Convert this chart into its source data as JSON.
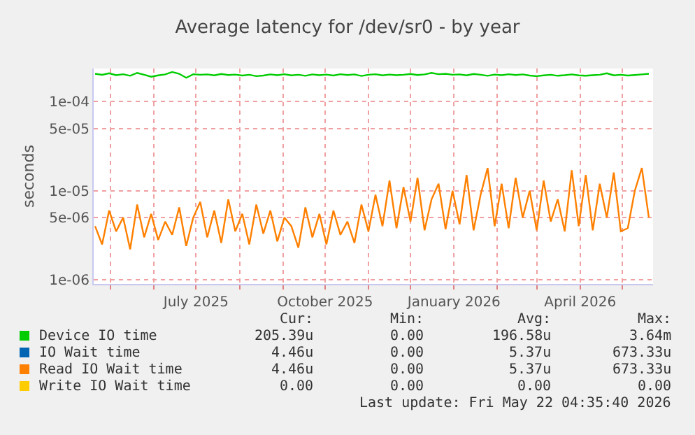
{
  "chart_data": {
    "type": "line",
    "title": "Average latency for /dev/sr0 - by year",
    "ylabel": "seconds",
    "log": "y",
    "grid": true,
    "legend": "bottom",
    "marker": "none",
    "line_style": "solid",
    "xlim": [
      "2025-04-19",
      "2026-05-23"
    ],
    "xticks": [
      {
        "value": "2025-05-01",
        "label": null
      },
      {
        "value": "2025-06-01",
        "label": null
      },
      {
        "value": "2025-07-01",
        "label": "July 2025"
      },
      {
        "value": "2025-08-01",
        "label": null
      },
      {
        "value": "2025-09-01",
        "label": null
      },
      {
        "value": "2025-10-01",
        "label": "October 2025"
      },
      {
        "value": "2025-11-01",
        "label": null
      },
      {
        "value": "2025-12-01",
        "label": null
      },
      {
        "value": "2026-01-01",
        "label": "January 2026"
      },
      {
        "value": "2026-02-01",
        "label": null
      },
      {
        "value": "2026-03-01",
        "label": null
      },
      {
        "value": "2026-04-01",
        "label": "April 2026"
      },
      {
        "value": "2026-05-01",
        "label": null
      }
    ],
    "ylim": [
      9e-07,
      0.000235
    ],
    "yticks": [
      {
        "value": 1e-06,
        "label": "1e-06"
      },
      {
        "value": 5e-06,
        "label": "5e-06"
      },
      {
        "value": 1e-05,
        "label": "1e-05"
      },
      {
        "value": 5e-05,
        "label": "5e-05"
      },
      {
        "value": 0.0001,
        "label": "1e-04"
      }
    ],
    "x": [
      "2025-04-20",
      "2025-04-25",
      "2025-04-30",
      "2025-05-05",
      "2025-05-10",
      "2025-05-15",
      "2025-05-20",
      "2025-05-25",
      "2025-05-30",
      "2025-06-04",
      "2025-06-09",
      "2025-06-14",
      "2025-06-19",
      "2025-06-24",
      "2025-06-29",
      "2025-07-04",
      "2025-07-09",
      "2025-07-14",
      "2025-07-19",
      "2025-07-24",
      "2025-07-29",
      "2025-08-03",
      "2025-08-08",
      "2025-08-13",
      "2025-08-18",
      "2025-08-23",
      "2025-08-28",
      "2025-09-02",
      "2025-09-07",
      "2025-09-12",
      "2025-09-17",
      "2025-09-22",
      "2025-09-27",
      "2025-10-02",
      "2025-10-07",
      "2025-10-12",
      "2025-10-17",
      "2025-10-22",
      "2025-10-27",
      "2025-11-01",
      "2025-11-06",
      "2025-11-11",
      "2025-11-16",
      "2025-11-21",
      "2025-11-26",
      "2025-12-01",
      "2025-12-06",
      "2025-12-11",
      "2025-12-16",
      "2025-12-21",
      "2025-12-26",
      "2025-12-31",
      "2026-01-05",
      "2026-01-10",
      "2026-01-15",
      "2026-01-20",
      "2026-01-25",
      "2026-01-30",
      "2026-02-04",
      "2026-02-09",
      "2026-02-14",
      "2026-02-19",
      "2026-02-24",
      "2026-03-01",
      "2026-03-06",
      "2026-03-11",
      "2026-03-16",
      "2026-03-21",
      "2026-03-26",
      "2026-03-31",
      "2026-04-05",
      "2026-04-10",
      "2026-04-15",
      "2026-04-20",
      "2026-04-25",
      "2026-04-30",
      "2026-05-05",
      "2026-05-10",
      "2026-05-15",
      "2026-05-20"
    ],
    "series": [
      {
        "name": "Device IO time",
        "color": "#00cc00",
        "values": [
          0.000205,
          0.0002,
          0.000208,
          0.000198,
          0.000203,
          0.000195,
          0.00021,
          0.0002,
          0.00019,
          0.000197,
          0.000202,
          0.000215,
          0.000205,
          0.000185,
          0.000203,
          0.0002,
          0.000202,
          0.000197,
          0.000204,
          0.000199,
          0.000201,
          0.000196,
          0.0002,
          0.000193,
          0.000196,
          0.000202,
          0.000198,
          0.000203,
          0.000197,
          0.0002,
          0.000195,
          0.000202,
          0.000198,
          0.000201,
          0.000196,
          0.000203,
          0.000199,
          0.000202,
          0.000194,
          0.0002,
          0.000203,
          0.000197,
          0.000201,
          0.000198,
          0.0002,
          0.000204,
          0.000199,
          0.000202,
          0.00021,
          0.000203,
          0.000205,
          0.0002,
          0.000202,
          0.000197,
          0.000204,
          0.0002,
          0.000195,
          0.000201,
          0.000198,
          0.000203,
          0.000199,
          0.000202,
          0.000196,
          0.000193,
          0.000197,
          0.0002,
          0.000195,
          0.000198,
          0.000202,
          0.000197,
          0.000195,
          0.000198,
          0.0002,
          0.000208,
          0.000197,
          0.0002,
          0.000196,
          0.000199,
          0.000202,
          0.000205
        ]
      },
      {
        "name": "IO Wait time",
        "color": "#0066b3",
        "values": [
          null,
          null,
          null,
          null,
          null,
          null,
          null,
          null,
          null,
          null,
          null,
          null,
          null,
          null,
          null,
          null,
          null,
          null,
          null,
          null,
          null,
          null,
          null,
          null,
          null,
          null,
          null,
          null,
          null,
          null,
          null,
          null,
          null,
          null,
          null,
          null,
          null,
          null,
          null,
          null,
          null,
          null,
          null,
          null,
          null,
          null,
          null,
          null,
          null,
          null,
          null,
          null,
          null,
          null,
          null,
          null,
          null,
          null,
          null,
          null,
          null,
          null,
          null,
          null,
          null,
          null,
          null,
          null,
          null,
          null,
          null,
          null,
          null,
          null,
          null,
          null,
          null,
          null,
          null,
          null
        ]
      },
      {
        "name": "Read IO Wait time",
        "color": "#ff8000",
        "values": [
          4e-06,
          2.5e-06,
          6e-06,
          3.5e-06,
          5e-06,
          2.2e-06,
          7e-06,
          3e-06,
          5.5e-06,
          2.8e-06,
          4.5e-06,
          3.2e-06,
          6.5e-06,
          2.4e-06,
          5e-06,
          7.5e-06,
          3e-06,
          6e-06,
          2.6e-06,
          8e-06,
          3.5e-06,
          5.5e-06,
          2.5e-06,
          7e-06,
          3.3e-06,
          6e-06,
          2.7e-06,
          5e-06,
          4e-06,
          2.3e-06,
          6.5e-06,
          3e-06,
          5.5e-06,
          2.5e-06,
          6e-06,
          3.2e-06,
          4.5e-06,
          2.6e-06,
          7e-06,
          3.5e-06,
          9e-06,
          4e-06,
          1.3e-05,
          3.8e-06,
          1.1e-05,
          4.5e-06,
          1.4e-05,
          3.6e-06,
          8e-06,
          1.2e-05,
          3.7e-06,
          1e-05,
          4.2e-06,
          1.5e-05,
          3.6e-06,
          9e-06,
          1.8e-05,
          4e-06,
          1.2e-05,
          3.8e-06,
          1.4e-05,
          5e-06,
          1e-05,
          3.6e-06,
          1.3e-05,
          4.5e-06,
          8e-06,
          3.5e-06,
          1.7e-05,
          4e-06,
          1.5e-05,
          3.6e-06,
          1.2e-05,
          5e-06,
          1.6e-05,
          3.5e-06,
          3.8e-06,
          1e-05,
          1.8e-05,
          5e-06
        ]
      },
      {
        "name": "Write IO Wait time",
        "color": "#ffcc00",
        "values": [
          null,
          null,
          null,
          null,
          null,
          null,
          null,
          null,
          null,
          null,
          null,
          null,
          null,
          null,
          null,
          null,
          null,
          null,
          null,
          null,
          null,
          null,
          null,
          null,
          null,
          null,
          null,
          null,
          null,
          null,
          null,
          null,
          null,
          null,
          null,
          null,
          null,
          null,
          null,
          null,
          null,
          null,
          null,
          null,
          null,
          null,
          null,
          null,
          null,
          null,
          null,
          null,
          null,
          null,
          null,
          null,
          null,
          null,
          null,
          null,
          null,
          null,
          null,
          null,
          null,
          null,
          null,
          null,
          null,
          null,
          null,
          null,
          null,
          null,
          null,
          null,
          null,
          null,
          null,
          null
        ]
      }
    ],
    "annotations": [
      "Cur:",
      "Min:",
      "Avg:",
      "Max:",
      "205.39u",
      "0.00",
      "196.58u",
      "3.64m",
      "4.46u",
      "0.00",
      "5.37u",
      "673.33u",
      "4.46u",
      "0.00",
      "5.37u",
      "673.33u",
      "0.00",
      "0.00",
      "0.00",
      "0.00",
      "Last update: Fri May 22 04:35:40 2026"
    ]
  }
}
